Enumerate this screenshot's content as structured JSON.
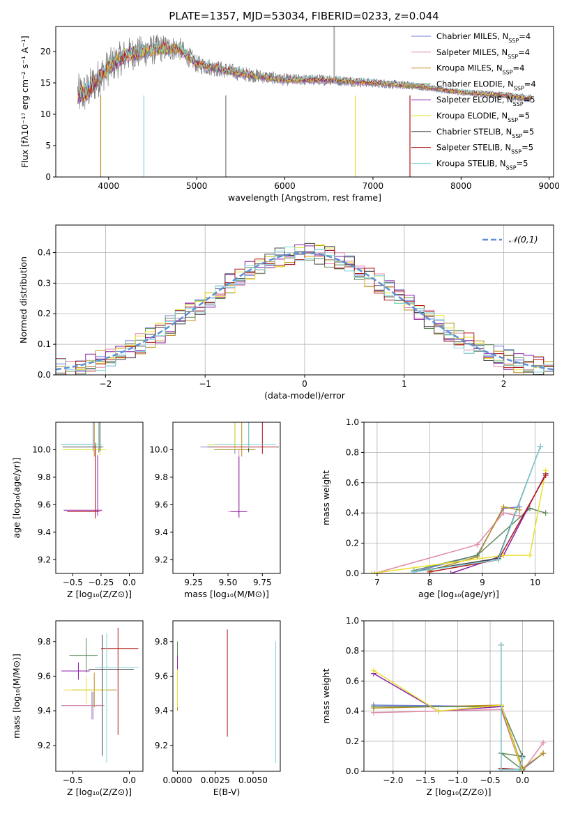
{
  "figure_title": "PLATE=1357, MJD=53034, FIBERID=0233, z=0.044",
  "series_colors": [
    "#6f7fd6",
    "#e08aa8",
    "#b98b1c",
    "#5a8a5a",
    "#8b1fa8",
    "#e7e02a",
    "#444444",
    "#b01616",
    "#7fd3dc"
  ],
  "legend": [
    "Chabrier MILES, N",
    "Salpeter MILES, N",
    "Kroupa MILES, N",
    "Chabrier ELODIE, N",
    "Salpeter ELODIE, N",
    "Kroupa ELODIE, N",
    "Chabrier STELIB, N",
    "Salpeter STELIB, N",
    "Kroupa STELIB, N"
  ],
  "legend_sub": "SSP",
  "legend_n": [
    "=4",
    "=4",
    "=4",
    "=4",
    "=5",
    "=5",
    "=5",
    "=5",
    "=5"
  ],
  "chart_data": [
    {
      "id": "spectrum",
      "type": "line",
      "title": "PLATE=1357, MJD=53034, FIBERID=0233, z=0.044",
      "xlabel": "wavelength [Angstrom, rest frame]",
      "ylabel": "Flux [fλ10⁻¹⁷ erg cm⁻² s⁻¹ A⁻¹]",
      "xlim": [
        3400,
        9050
      ],
      "ylim": [
        0,
        24
      ],
      "xticks": [
        4000,
        5000,
        6000,
        7000,
        8000,
        9000
      ],
      "yticks": [
        0,
        5,
        10,
        15,
        20
      ],
      "data_range": [
        3650,
        8800
      ],
      "continuum": [
        [
          3650,
          13.0
        ],
        [
          3750,
          13.5
        ],
        [
          3900,
          16.0
        ],
        [
          4000,
          17.5
        ],
        [
          4200,
          19.5
        ],
        [
          4400,
          20.0
        ],
        [
          4600,
          20.5
        ],
        [
          4800,
          20.5
        ],
        [
          5000,
          18.0
        ],
        [
          5500,
          16.5
        ],
        [
          6000,
          15.5
        ],
        [
          6500,
          15.5
        ],
        [
          7000,
          15.0
        ],
        [
          7500,
          14.5
        ],
        [
          8000,
          13.5
        ],
        [
          8500,
          13.0
        ],
        [
          8800,
          12.5
        ]
      ],
      "noise_amp_data": [
        [
          3650,
          3.5
        ],
        [
          4000,
          3.0
        ],
        [
          4500,
          2.5
        ],
        [
          5000,
          1.5
        ],
        [
          6000,
          1.0
        ],
        [
          7000,
          0.8
        ],
        [
          8000,
          0.5
        ],
        [
          8800,
          0.7
        ]
      ]
    },
    {
      "id": "residuals",
      "type": "step",
      "xlabel": "(data-model)/error",
      "ylabel": "Normed distribution",
      "xlim": [
        -2.5,
        2.5
      ],
      "ylim": [
        0,
        0.49
      ],
      "xticks": [
        -2,
        -1,
        0,
        1,
        2
      ],
      "yticks": [
        0.0,
        0.1,
        0.2,
        0.3,
        0.4
      ],
      "bin_width": 0.1,
      "reference": {
        "name": "𝒩(0,1)",
        "mean": 0,
        "sigma": 1
      }
    },
    {
      "id": "age_vs_Z",
      "type": "errorbar",
      "xlabel": "Z [log₁₀(Z/Z⊙)]",
      "ylabel": "age  [log₁₀(age/yr)]",
      "xlim": [
        -0.65,
        0.12
      ],
      "ylim": [
        9.1,
        10.2
      ],
      "xticks": [
        -0.5,
        -0.25,
        0.0
      ],
      "yticks": [
        9.2,
        9.4,
        9.6,
        9.8,
        10.0
      ],
      "points": [
        [
          -0.32,
          10.04,
          0.28,
          0.03,
          0.05,
          0.45
        ],
        [
          -0.3,
          9.55,
          0.25,
          0.05,
          0.05,
          0.45
        ],
        [
          -0.31,
          10.0,
          0.27,
          0.04,
          0.05,
          0.45
        ],
        [
          -0.27,
          10.02,
          0.3,
          0.03,
          0.04,
          0.4
        ],
        [
          -0.28,
          9.56,
          0.3,
          0.04,
          0.04,
          0.4
        ],
        [
          -0.26,
          10.0,
          0.33,
          0.05,
          0.04,
          0.4
        ],
        [
          -0.26,
          10.02,
          0.33,
          0.03,
          0.03,
          0.85
        ],
        [
          -0.3,
          9.55,
          0.25,
          0.03,
          0.05,
          0.5
        ],
        [
          -0.27,
          10.04,
          0.33,
          0.03,
          0.03,
          0.85
        ]
      ]
    },
    {
      "id": "age_vs_mass",
      "type": "errorbar",
      "xlabel": "mass [log₁₀(M/M⊙)]",
      "ylabel": "",
      "xlim": [
        9.1,
        9.88
      ],
      "ylim": [
        9.1,
        10.2
      ],
      "xticks": [
        9.25,
        9.5,
        9.75
      ],
      "yticks": [
        9.2,
        9.4,
        9.6,
        9.8,
        10.0
      ],
      "points": [
        [
          9.55,
          10.02,
          0.25,
          0.1,
          0.05,
          0.45
        ],
        [
          9.58,
          9.55,
          0.08,
          0.05,
          0.05,
          0.45
        ],
        [
          9.6,
          10.0,
          0.2,
          0.1,
          0.05,
          0.45
        ],
        [
          9.65,
          10.02,
          0.25,
          0.2,
          0.04,
          0.4
        ],
        [
          9.58,
          9.55,
          0.06,
          0.06,
          0.04,
          0.4
        ],
        [
          9.55,
          10.04,
          0.2,
          0.1,
          0.04,
          0.4
        ],
        [
          9.65,
          10.02,
          0.3,
          0.22,
          0.03,
          0.85
        ],
        [
          9.75,
          10.02,
          0.35,
          0.1,
          0.05,
          0.85
        ],
        [
          9.65,
          10.04,
          0.25,
          0.2,
          0.03,
          0.85
        ]
      ]
    },
    {
      "id": "weight_vs_age",
      "type": "line",
      "xlabel": "age  [log₁₀(age/yr)]",
      "ylabel": "mass weight",
      "xlim": [
        6.75,
        10.35
      ],
      "ylim": [
        0,
        1
      ],
      "xticks": [
        7,
        8,
        9,
        10
      ],
      "yticks": [
        0.0,
        0.2,
        0.4,
        0.6,
        0.8,
        1.0
      ],
      "series": [
        {
          "name": "Chabrier MILES",
          "x": [
            7.7,
            8.9,
            9.4,
            9.7
          ],
          "y": [
            0.01,
            0.12,
            0.43,
            0.44
          ]
        },
        {
          "name": "Salpeter MILES",
          "x": [
            6.95,
            8.9,
            9.4,
            9.7
          ],
          "y": [
            0.0,
            0.19,
            0.4,
            0.38
          ]
        },
        {
          "name": "Kroupa MILES",
          "x": [
            8.0,
            8.9,
            9.4,
            9.7
          ],
          "y": [
            0.02,
            0.11,
            0.44,
            0.42
          ]
        },
        {
          "name": "Chabrier ELODIE",
          "x": [
            7.7,
            8.9,
            9.9,
            10.2
          ],
          "y": [
            0.02,
            0.12,
            0.43,
            0.4
          ]
        },
        {
          "name": "Salpeter ELODIE",
          "x": [
            8.4,
            9.4,
            10.2
          ],
          "y": [
            0.0,
            0.12,
            0.66
          ]
        },
        {
          "name": "Kroupa ELODIE",
          "x": [
            6.9,
            9.4,
            9.9,
            10.2
          ],
          "y": [
            0.0,
            0.12,
            0.12,
            0.68
          ]
        },
        {
          "name": "Chabrier STELIB",
          "x": [
            7.7,
            9.3,
            10.1
          ],
          "y": [
            0.01,
            0.1,
            0.84
          ]
        },
        {
          "name": "Salpeter STELIB",
          "x": [
            8.0,
            9.3,
            10.2
          ],
          "y": [
            0.01,
            0.09,
            0.65
          ]
        },
        {
          "name": "Kroupa STELIB",
          "x": [
            7.7,
            9.3,
            10.1
          ],
          "y": [
            0.01,
            0.09,
            0.84
          ]
        }
      ]
    },
    {
      "id": "mass_vs_Z",
      "type": "errorbar",
      "xlabel": "Z [log₁₀(Z/Z⊙)]",
      "ylabel": "mass [log₁₀(M/M⊙)]",
      "xlim": [
        -0.65,
        0.12
      ],
      "ylim": [
        9.05,
        9.92
      ],
      "xticks": [
        -0.5,
        0.0
      ],
      "yticks": [
        9.2,
        9.4,
        9.6,
        9.8
      ],
      "points": [
        [
          -0.33,
          9.43,
          0.27,
          0.08,
          0.08,
          0.08
        ],
        [
          -0.32,
          9.43,
          0.27,
          0.1,
          0.08,
          0.08
        ],
        [
          -0.31,
          9.52,
          0.2,
          0.2,
          0.1,
          0.1
        ],
        [
          -0.38,
          9.72,
          0.15,
          0.1,
          0.1,
          0.1
        ],
        [
          -0.45,
          9.63,
          0.15,
          0.1,
          0.05,
          0.05
        ],
        [
          -0.38,
          9.52,
          0.2,
          0.18,
          0.08,
          0.08
        ],
        [
          -0.24,
          9.64,
          0.12,
          0.28,
          0.5,
          0.2
        ],
        [
          -0.1,
          9.76,
          0.15,
          0.18,
          0.5,
          0.12
        ],
        [
          -0.2,
          9.65,
          0.1,
          0.28,
          0.55,
          0.2
        ]
      ]
    },
    {
      "id": "mass_vs_EBV",
      "type": "errorbar",
      "xlabel": "E(B-V)",
      "ylabel": "",
      "xlim": [
        -0.0003,
        0.0068
      ],
      "ylim": [
        9.05,
        9.92
      ],
      "xticks": [
        0.0,
        0.0025,
        0.005
      ],
      "xtick_labels": [
        "0.0000",
        "0.0025",
        "0.0050"
      ],
      "yticks": [
        9.2,
        9.4,
        9.6,
        9.8
      ],
      "points": [
        [
          0.0,
          9.55,
          0,
          0,
          0.13,
          0.17
        ],
        [
          0.0,
          9.6,
          0,
          0,
          0.15,
          0.2
        ],
        [
          0.0,
          9.5,
          0,
          0,
          0.1,
          0.15
        ],
        [
          0.0,
          9.6,
          0,
          0,
          0.18,
          0.2
        ],
        [
          0.0,
          9.62,
          0,
          0,
          0.05,
          0.1
        ],
        [
          0.0,
          9.52,
          0,
          0,
          0.1,
          0.12
        ],
        [
          0.0065,
          9.45,
          0,
          0,
          0.35,
          0.35
        ],
        [
          0.0033,
          9.56,
          0,
          0,
          0.31,
          0.31
        ],
        [
          0.0065,
          9.45,
          0,
          0,
          0.35,
          0.35
        ]
      ]
    },
    {
      "id": "weight_vs_Z",
      "type": "line",
      "xlabel": "Z [log₁₀(Z/Z⊙)]",
      "ylabel": "mass weight",
      "xlim": [
        -2.45,
        0.48
      ],
      "ylim": [
        0,
        1
      ],
      "xticks": [
        -2.0,
        -1.5,
        -1.0,
        -0.5,
        0.0
      ],
      "yticks": [
        0.0,
        0.2,
        0.4,
        0.6,
        0.8,
        1.0
      ],
      "series": [
        {
          "name": "Chabrier MILES",
          "x": [
            -2.3,
            -0.33,
            0.0,
            0.32
          ],
          "y": [
            0.44,
            0.43,
            0.01,
            0.12
          ]
        },
        {
          "name": "Salpeter MILES",
          "x": [
            -2.3,
            -0.33,
            0.0,
            0.32
          ],
          "y": [
            0.39,
            0.41,
            0.0,
            0.19
          ]
        },
        {
          "name": "Kroupa MILES",
          "x": [
            -2.3,
            -0.33,
            0.0,
            0.32
          ],
          "y": [
            0.42,
            0.44,
            0.02,
            0.12
          ]
        },
        {
          "name": "Chabrier ELODIE",
          "x": [
            -2.3,
            -0.33,
            0.0,
            -0.33,
            0.0
          ],
          "y": [
            0.43,
            0.43,
            0.1,
            0.12,
            0.01
          ]
        },
        {
          "name": "Salpeter ELODIE",
          "x": [
            -2.3,
            -1.3,
            -0.33,
            0.0
          ],
          "y": [
            0.65,
            0.4,
            0.43,
            0.0
          ]
        },
        {
          "name": "Kroupa ELODIE",
          "x": [
            -2.3,
            -1.3,
            -0.33,
            0.0
          ],
          "y": [
            0.67,
            0.4,
            0.44,
            0.0
          ]
        },
        {
          "name": "Chabrier STELIB",
          "x": [
            -0.33,
            -0.33,
            -0.05,
            0.0
          ],
          "y": [
            0.84,
            0.02,
            0.01,
            0.1
          ]
        },
        {
          "name": "Salpeter STELIB",
          "x": [
            -0.33,
            -0.33,
            -0.05,
            0.0
          ],
          "y": [
            0.84,
            0.02,
            0.01,
            0.09
          ]
        },
        {
          "name": "Kroupa STELIB",
          "x": [
            -0.33,
            -0.33,
            -0.05,
            0.0
          ],
          "y": [
            0.84,
            0.01,
            0.01,
            0.09
          ]
        }
      ]
    }
  ]
}
